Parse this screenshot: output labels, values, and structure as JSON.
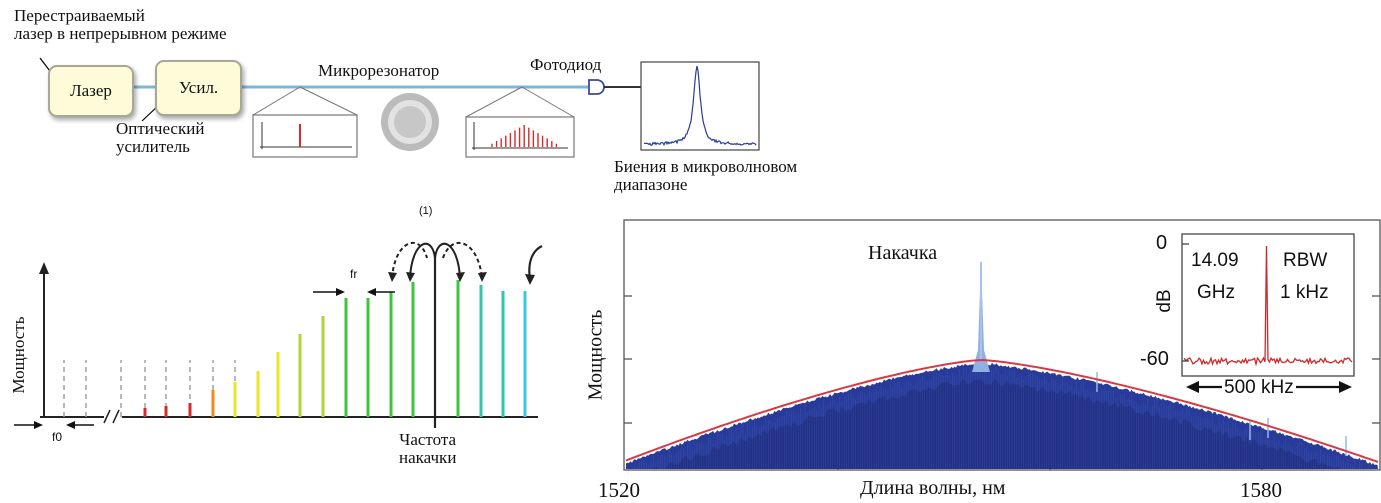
{
  "setup": {
    "laser_caption": "Перестраиваемый\nлазер в непрерывном режиме",
    "laser_box": "Лазер",
    "amp_box": "Усил.",
    "amp_caption": "Оптический\nусилитель",
    "microresonator": "Микрорезонатор",
    "photodiode": "Фотодиод",
    "beat_caption": "Биения в микроволновом\nдиапазоне"
  },
  "comb": {
    "ylabel": "Мощность",
    "bracket_label": "(1)",
    "fr_label": "fr",
    "f0_label": "f0",
    "pump_label": "Частота\nнакачки",
    "colors": {
      "red": "#d82a2a",
      "orange": "#f08d1a",
      "yellow": "#e9e52a",
      "lime": "#aed43a",
      "green": "#3fc43d",
      "teal": "#2fc6b0",
      "cyan": "#3ec9d8"
    }
  },
  "spectrum": {
    "ylabel": "Мощность",
    "xlabel": "Длина волны, нм",
    "pump_label": "Накачка",
    "x_tick_labels": [
      "1520",
      "1580"
    ],
    "fill_color": "#283b9a",
    "envelope_color": "#d63a45",
    "inset": {
      "y_tick_top": "0",
      "y_tick_bottom": "-60",
      "ylabel": "dB",
      "freq_value": "14.09",
      "freq_unit": "GHz",
      "rbw_label": "RBW",
      "rbw_value": "1 kHz",
      "span_label": "500 kHz",
      "trace_color": "#cc2a2a"
    }
  }
}
